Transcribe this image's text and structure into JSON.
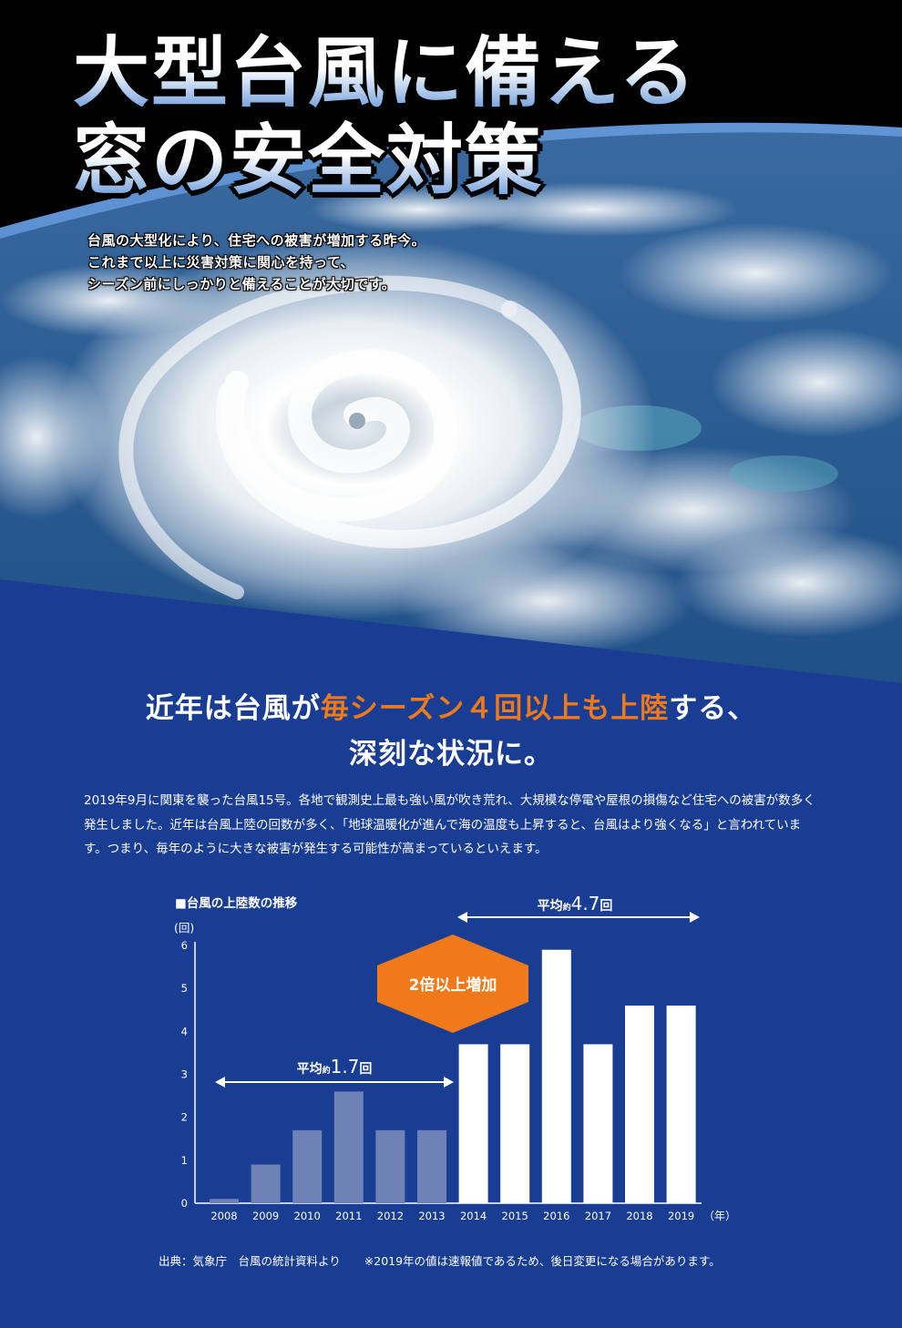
{
  "hero": {
    "title_line1": "大型台風に備える",
    "title_line2": "窓の安全対策",
    "lead_lines": [
      "台風の大型化により、住宅への被害が増加する昨今。",
      "これまで以上に災害対策に関心を持って、",
      "シーズン前にしっかりと備えることが大切です。"
    ]
  },
  "headline": {
    "line1_pre": "近年は台風が",
    "line1_highlight": "毎シーズン４回以上も上陸",
    "line1_post": "する、",
    "line2": "深刻な状況に。"
  },
  "body_text": "2019年9月に関東を襲った台風15号。各地で観測史上最も強い風が吹き荒れ、大規模な停電や屋根の損傷など住宅への被害が数多く発生しました。近年は台風上陸の回数が多く、「地球温暖化が進んで海の温度も上昇すると、台風はより強くなる」と言われています。つまり、毎年のように大きな被害が発生する可能性が高まっているといえます。",
  "colors": {
    "navy": "#1a3d94",
    "orange": "#f07a1a",
    "bar_early": "#6e82b8",
    "bar_recent": "#ffffff"
  },
  "chart_data": {
    "type": "bar",
    "title": "■台風の上陸数の推移",
    "ylabel": "(回)",
    "xlabel": "（年）",
    "ylim": [
      0,
      6
    ],
    "yticks": [
      "0",
      "1",
      "2",
      "3",
      "4",
      "5",
      "6"
    ],
    "categories": [
      "2008",
      "2009",
      "2010",
      "2011",
      "2012",
      "2013",
      "2014",
      "2015",
      "2016",
      "2017",
      "2018",
      "2019"
    ],
    "values": [
      0.1,
      0.9,
      1.7,
      2.6,
      1.7,
      1.7,
      3.7,
      3.7,
      5.9,
      3.7,
      4.6,
      4.6
    ],
    "annotations": {
      "avg_early": {
        "prefix": "平均",
        "small": "約",
        "value": "1.7",
        "suffix": "回"
      },
      "avg_recent": {
        "prefix": "平均",
        "small": "約",
        "value": "4.7",
        "suffix": "回"
      },
      "increase": "2倍以上増加"
    },
    "grid": false
  },
  "source": {
    "citation": "出典：気象庁　台風の統計資料より",
    "note": "※2019年の値は速報値であるため、後日変更になる場合があります。"
  }
}
